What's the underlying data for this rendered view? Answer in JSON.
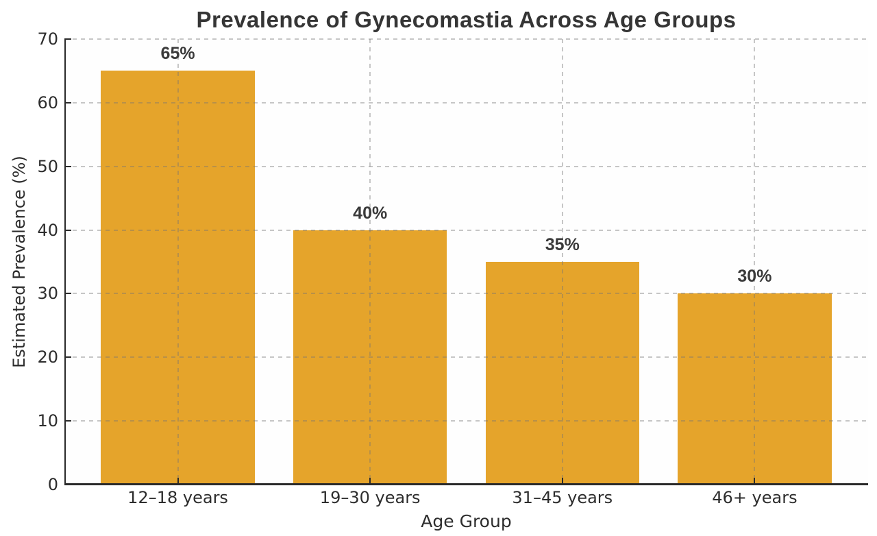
{
  "chart_data": {
    "type": "bar",
    "title": "Prevalence of Gynecomastia Across Age Groups",
    "xlabel": "Age Group",
    "ylabel": "Estimated Prevalence (%)",
    "categories": [
      "12–18 years",
      "19–30 years",
      "31–45 years",
      "46+ years"
    ],
    "values": [
      65,
      40,
      35,
      30
    ],
    "bar_labels": [
      "65%",
      "40%",
      "35%",
      "30%"
    ],
    "ylim": [
      0,
      70
    ],
    "yticks": [
      0,
      10,
      20,
      30,
      40,
      50,
      60,
      70
    ],
    "xlim": [
      -0.59,
      3.59
    ],
    "bar_width_units": 0.8,
    "grid": {
      "style": "dashed",
      "axes": "both",
      "drawn_over_bars": true
    },
    "legend": "none",
    "colors": {
      "bar": "#E5A42B",
      "spine": "#2a2a2a",
      "grid": "#c6c6c6",
      "title_text": "#353535",
      "value_text": "#3a3a3a",
      "tick_text": "#2d2d2d",
      "background": "#ffffff"
    }
  }
}
